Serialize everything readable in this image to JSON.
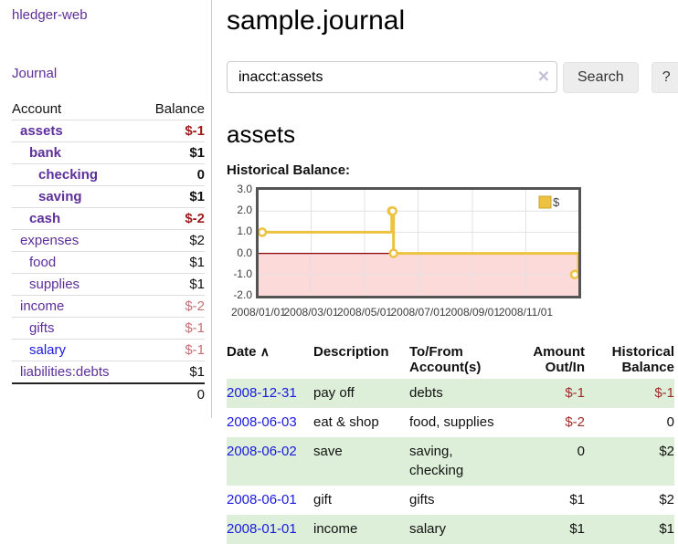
{
  "sidebar": {
    "app_title": "hledger-web",
    "journal_link": "Journal",
    "accounts_table": {
      "account_header": "Account",
      "balance_header": "Balance",
      "rows": [
        {
          "name": "assets",
          "balance": "$-1"
        },
        {
          "name": "bank",
          "balance": "$1"
        },
        {
          "name": "checking",
          "balance": "0"
        },
        {
          "name": "saving",
          "balance": "$1"
        },
        {
          "name": "cash",
          "balance": "$-2"
        },
        {
          "name": "expenses",
          "balance": "$2"
        },
        {
          "name": "food",
          "balance": "$1"
        },
        {
          "name": "supplies",
          "balance": "$1"
        },
        {
          "name": "income",
          "balance": "$-2"
        },
        {
          "name": "gifts",
          "balance": "$-1"
        },
        {
          "name": "salary",
          "balance": "$-1"
        },
        {
          "name": "liabilities:debts",
          "balance": "$1"
        }
      ],
      "total": "0"
    }
  },
  "main": {
    "title": "sample.journal",
    "search": {
      "value": "inacct:assets",
      "clear_icon": "×",
      "button_label": "Search",
      "help_label": "?"
    },
    "account_heading": "assets",
    "chart_label": "Historical Balance:",
    "register": {
      "headers": [
        "Date",
        "Description",
        "To/From Account(s)",
        "Amount Out/In",
        "Historical Balance"
      ],
      "sort_icon": "∧",
      "rows": [
        {
          "date": "2008-12-31",
          "description": "pay off",
          "accounts": "debts",
          "amount": "$-1",
          "balance": "$-1"
        },
        {
          "date": "2008-06-03",
          "description": "eat & shop",
          "accounts": "food, supplies",
          "amount": "$-2",
          "balance": "0"
        },
        {
          "date": "2008-06-02",
          "description": "save",
          "accounts": "saving, checking",
          "amount": "0",
          "balance": "$2"
        },
        {
          "date": "2008-06-01",
          "description": "gift",
          "accounts": "gifts",
          "amount": "$1",
          "balance": "$2"
        },
        {
          "date": "2008-01-01",
          "description": "income",
          "accounts": "salary",
          "amount": "$1",
          "balance": "$1"
        }
      ]
    }
  },
  "chart_data": {
    "type": "line",
    "step": true,
    "title": "Historical Balance:",
    "series": [
      {
        "name": "$",
        "points": [
          [
            "2008-01-01",
            1
          ],
          [
            "2008-06-01",
            2
          ],
          [
            "2008-06-02",
            2
          ],
          [
            "2008-06-03",
            0
          ],
          [
            "2008-12-31",
            -1
          ]
        ]
      }
    ],
    "xlim": [
      "2008-01-01",
      "2008-12-31"
    ],
    "ylim": [
      -2,
      3
    ],
    "yticks": [
      3,
      2,
      1,
      0,
      -1,
      -2
    ],
    "xticks": [
      "2008/01/01",
      "2008/03/01",
      "2008/05/01",
      "2008/07/01",
      "2008/09/01",
      "2008/11/01"
    ],
    "legend_position": "top-right",
    "grid": true,
    "colors": {
      "line": "#edc240",
      "marker_fill": "#ffffff",
      "negative_region": "#fcdada",
      "zero_line": "#8b0000",
      "grid": "#e2e2e2",
      "plot_border": "#545454"
    }
  }
}
